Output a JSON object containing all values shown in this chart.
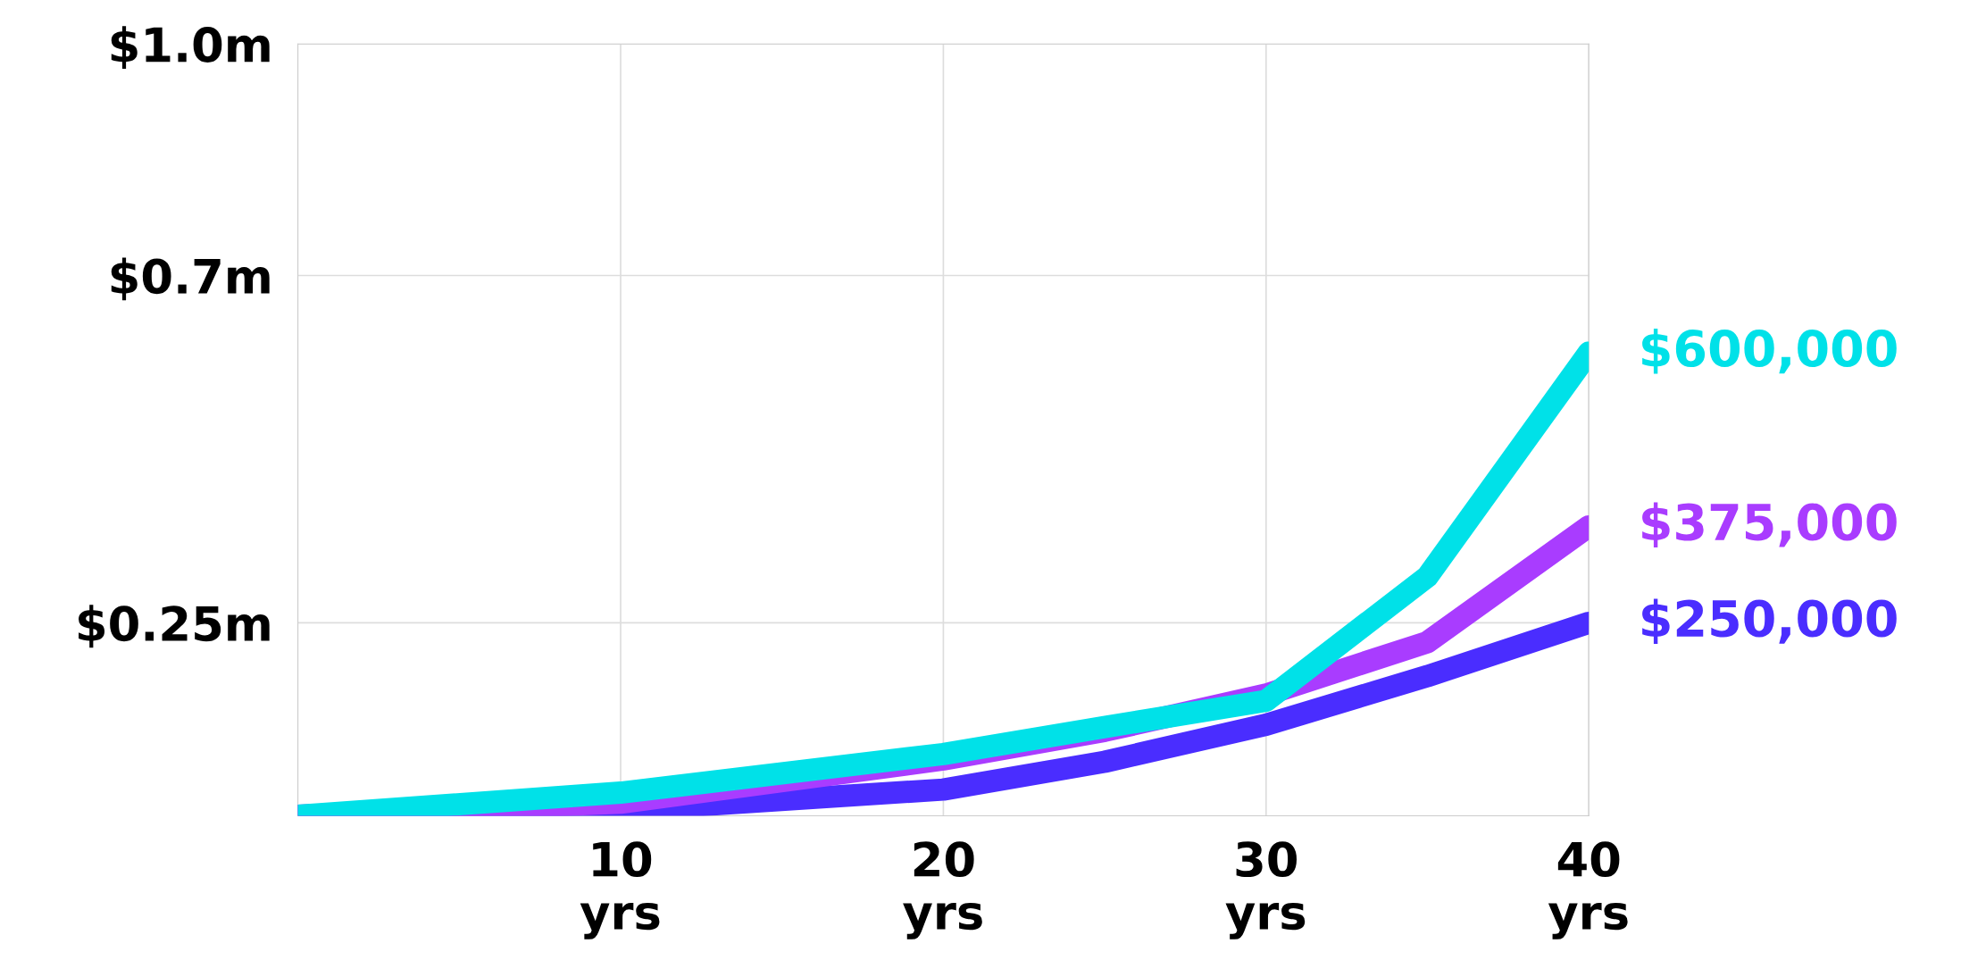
{
  "chart_data": {
    "type": "line",
    "x": [
      0,
      10,
      20,
      25,
      30,
      35,
      40
    ],
    "series": [
      {
        "color": "#4a2dff",
        "values": [
          0,
          7000,
          34000,
          70000,
          118000,
          181000,
          250000
        ],
        "value_labels": [
          null,
          null,
          null,
          null,
          null,
          null,
          "$250,000"
        ]
      },
      {
        "color": "#a93cff",
        "values": [
          0,
          17000,
          73000,
          110000,
          157000,
          225000,
          375000
        ],
        "value_labels": [
          null,
          null,
          null,
          null,
          null,
          null,
          "$375,000"
        ]
      },
      {
        "color": "#00e1e8",
        "values": [
          0,
          30000,
          80000,
          115000,
          149000,
          310000,
          600000
        ],
        "value_labels": [
          null,
          null,
          null,
          null,
          null,
          null,
          "$600,000"
        ]
      }
    ],
    "xlim": [
      0,
      40
    ],
    "ylim": [
      0,
      1000000
    ],
    "xticks": [
      {
        "value": 10,
        "label": "10\nyrs"
      },
      {
        "value": 20,
        "label": "20\nyrs"
      },
      {
        "value": 30,
        "label": "30\nyrs"
      },
      {
        "value": 40,
        "label": "40\nyrs"
      }
    ],
    "yticks": [
      {
        "value": 250000,
        "label": "$0.25m"
      },
      {
        "value": 700000,
        "label": "$0.7m"
      },
      {
        "value": 1000000,
        "label": "$1.0m"
      }
    ],
    "grid": true,
    "line_style": "solid",
    "marker": "none"
  }
}
